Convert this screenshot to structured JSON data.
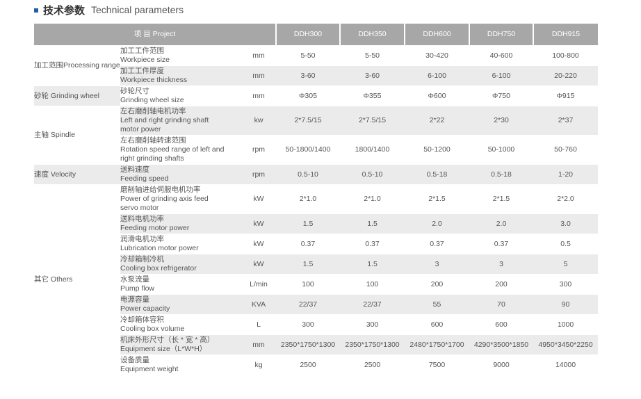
{
  "title": {
    "cn": "技术参数",
    "en": "Technical parameters"
  },
  "header": {
    "project": "项 目 Project",
    "models": [
      "DDH300",
      "DDH350",
      "DDH600",
      "DDH750",
      "DDH915"
    ]
  },
  "colors": {
    "header_bg": "#a7a7a7",
    "row_shade": "#ebebeb",
    "accent": "#1f5fa8"
  },
  "groups": [
    {
      "label": "加工范围\nProcessing range",
      "rows": [
        {
          "item": "加工工件范围\nWorkpiece size",
          "unit": "mm",
          "values": [
            "5-50",
            "5-50",
            "30-420",
            "40-600",
            "100-800"
          ]
        },
        {
          "item": "加工工件厚度\nWorkpiece thickness",
          "unit": "mm",
          "values": [
            "3-60",
            "3-60",
            "6-100",
            "6-100",
            "20-220"
          ]
        }
      ]
    },
    {
      "label": "砂轮 Grinding wheel",
      "rows": [
        {
          "item": "砂轮尺寸\nGrinding wheel size",
          "unit": "mm",
          "values": [
            "Φ305",
            "Φ355",
            "Φ600",
            "Φ750",
            "Φ915"
          ]
        }
      ]
    },
    {
      "label": "主轴 Spindle",
      "rows": [
        {
          "item": "左右磨削轴电机功率\nLeft and right grinding shaft\nmotor power",
          "unit": "kw",
          "values": [
            "2*7.5/15",
            "2*7.5/15",
            "2*22",
            "2*30",
            "2*37"
          ]
        },
        {
          "item": "左右磨削轴转速范围\nRotation speed range of left and\nright grinding shafts",
          "unit": "rpm",
          "values": [
            "50-1800/1400",
            "1800/1400",
            "50-1200",
            "50-1000",
            "50-760"
          ]
        }
      ]
    },
    {
      "label": "速度 Velocity",
      "rows": [
        {
          "item": "送料速度\nFeeding speed",
          "unit": "rpm",
          "values": [
            "0.5-10",
            "0.5-10",
            "0.5-18",
            "0.5-18",
            "1-20"
          ]
        }
      ]
    },
    {
      "label": "其它 Others",
      "rows": [
        {
          "item": "磨削轴进给伺服电机功率\nPower of grinding axis feed\nservo motor",
          "unit": "kW",
          "values": [
            "2*1.0",
            "2*1.0",
            "2*1.5",
            "2*1.5",
            "2*2.0"
          ]
        },
        {
          "item": "送料电机功率\nFeeding motor power",
          "unit": "kW",
          "values": [
            "1.5",
            "1.5",
            "2.0",
            "2.0",
            "3.0"
          ]
        },
        {
          "item": "润滑电机功率\nLubrication motor power",
          "unit": "kW",
          "values": [
            "0.37",
            "0.37",
            "0.37",
            "0.37",
            "0.5"
          ]
        },
        {
          "item": "冷却箱制冷机\nCooling box refrigerator",
          "unit": "kW",
          "values": [
            "1.5",
            "1.5",
            "3",
            "3",
            "5"
          ]
        },
        {
          "item": "水泵流量\nPump flow",
          "unit": "L/min",
          "values": [
            "100",
            "100",
            "200",
            "200",
            "300"
          ]
        },
        {
          "item": "电源容量\nPower capacity",
          "unit": "KVA",
          "values": [
            "22/37",
            "22/37",
            "55",
            "70",
            "90"
          ]
        },
        {
          "item": "冷却箱体容积\nCooling box volume",
          "unit": "L",
          "values": [
            "300",
            "300",
            "600",
            "600",
            "1000"
          ]
        },
        {
          "item": "机床外形尺寸（长 * 宽 * 高）\nEquipment size（L*W*H）",
          "unit": "mm",
          "values": [
            "2350*1750*1300",
            "2350*1750*1300",
            "2480*1750*1700",
            "4290*3500*1850",
            "4950*3450*2250"
          ]
        },
        {
          "item": "设备质量\nEquipment weight",
          "unit": "kg",
          "values": [
            "2500",
            "2500",
            "7500",
            "9000",
            "14000"
          ]
        }
      ]
    }
  ]
}
